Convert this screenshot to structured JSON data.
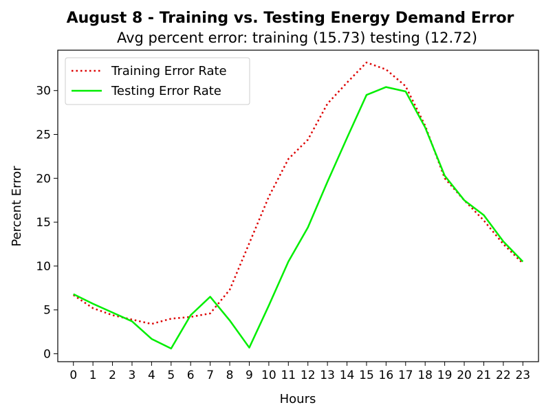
{
  "chart_data": {
    "type": "line",
    "title": "August 8 - Training vs. Testing Energy Demand Error",
    "subtitle": "Avg percent error: training (15.73) testing (12.72)",
    "xlabel": "Hours",
    "ylabel": "Percent Error",
    "xlim": [
      -0.8,
      23.8
    ],
    "ylim": [
      -0.9,
      34.6
    ],
    "x": [
      0,
      1,
      2,
      3,
      4,
      5,
      6,
      7,
      8,
      9,
      10,
      11,
      12,
      13,
      14,
      15,
      16,
      17,
      18,
      19,
      20,
      21,
      22,
      23
    ],
    "x_ticks": [
      "0",
      "1",
      "2",
      "3",
      "4",
      "5",
      "6",
      "7",
      "8",
      "9",
      "10",
      "11",
      "12",
      "13",
      "14",
      "15",
      "16",
      "17",
      "18",
      "19",
      "20",
      "21",
      "22",
      "23"
    ],
    "y_ticks": [
      0,
      5,
      10,
      15,
      20,
      25,
      30
    ],
    "grid": false,
    "legend_position": "upper-left",
    "series": [
      {
        "name": "Training Error Rate",
        "style": "dotted",
        "color": "#dd0000",
        "values": [
          6.7,
          5.2,
          4.4,
          3.9,
          3.4,
          4.0,
          4.2,
          4.6,
          7.3,
          12.6,
          17.9,
          22.2,
          24.4,
          28.5,
          30.9,
          33.2,
          32.4,
          30.5,
          26.0,
          20.0,
          17.5,
          15.2,
          12.5,
          10.3
        ]
      },
      {
        "name": "Testing Error Rate",
        "style": "solid",
        "color": "#00ee00",
        "values": [
          6.8,
          5.7,
          4.7,
          3.7,
          1.7,
          0.6,
          4.4,
          6.5,
          3.8,
          0.7,
          5.5,
          10.5,
          14.4,
          19.6,
          24.6,
          29.5,
          30.4,
          29.9,
          25.8,
          20.3,
          17.5,
          15.8,
          12.8,
          10.5
        ]
      }
    ]
  }
}
